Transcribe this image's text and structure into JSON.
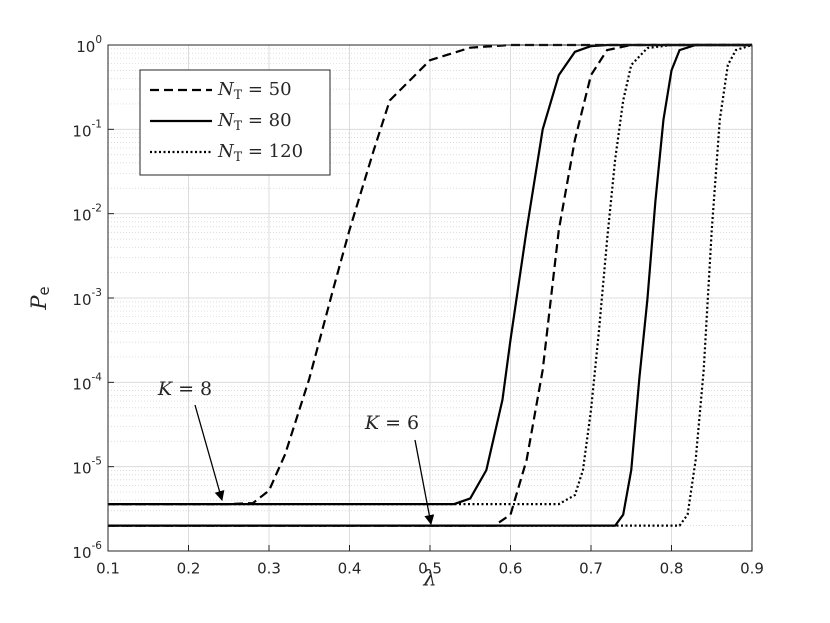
{
  "chart_data": {
    "type": "line",
    "log_y": true,
    "grid": true,
    "minor_grid": true,
    "x_label": "λ",
    "y_label": "P_e",
    "xlim": [
      0.1,
      0.9
    ],
    "xticks": [
      0.1,
      0.2,
      0.3,
      0.4,
      0.5,
      0.6,
      0.7,
      0.8,
      0.9
    ],
    "ylim": [
      1e-06,
      1
    ],
    "yticks": [
      {
        "value": 1e-06,
        "label": "10^-6"
      },
      {
        "value": 1e-05,
        "label": "10^-5"
      },
      {
        "value": 0.0001,
        "label": "10^-4"
      },
      {
        "value": 0.001,
        "label": "10^-3"
      },
      {
        "value": 0.01,
        "label": "10^-2"
      },
      {
        "value": 0.1,
        "label": "10^-1"
      },
      {
        "value": 1,
        "label": "10^0"
      }
    ],
    "legend": "upper left",
    "annotations": [
      "K = 8",
      "K = 6"
    ],
    "series": [
      {
        "name": "N_T = 50",
        "color": "#000000",
        "dash": "dashed",
        "curves": [
          {
            "x": [
              0.1,
              0.25,
              0.28,
              0.3,
              0.32,
              0.35,
              0.38,
              0.4,
              0.43,
              0.45,
              0.5,
              0.55,
              0.6,
              0.9
            ],
            "values": [
              3.6e-06,
              3.6e-06,
              3.7e-06,
              5.2e-06,
              1.4e-05,
              0.00011,
              0.0013,
              0.0064,
              0.056,
              0.22,
              0.66,
              0.93,
              1,
              1
            ]
          },
          {
            "x": [
              0.1,
              0.58,
              0.6,
              0.62,
              0.64,
              0.65,
              0.66,
              0.68,
              0.7,
              0.72,
              0.75,
              0.9
            ],
            "values": [
              2e-06,
              2e-06,
              2.7e-06,
              1.2e-05,
              0.00014,
              0.00095,
              0.0064,
              0.075,
              0.44,
              0.87,
              1,
              1
            ]
          }
        ]
      },
      {
        "name": "N_T = 80",
        "color": "#000000",
        "dash": "solid",
        "curves": [
          {
            "x": [
              0.1,
              0.53,
              0.55,
              0.57,
              0.59,
              0.6,
              0.62,
              0.64,
              0.66,
              0.68,
              0.7,
              0.72,
              0.9
            ],
            "values": [
              3.6e-06,
              3.6e-06,
              4.2e-06,
              9.1e-06,
              6.2e-05,
              0.00032,
              0.0064,
              0.1,
              0.44,
              0.83,
              0.97,
              1,
              1
            ]
          },
          {
            "x": [
              0.1,
              0.73,
              0.74,
              0.75,
              0.76,
              0.77,
              0.78,
              0.79,
              0.8,
              0.81,
              0.83,
              0.9
            ],
            "values": [
              2e-06,
              2e-06,
              2.7e-06,
              9.1e-06,
              0.00011,
              0.00095,
              0.014,
              0.13,
              0.5,
              0.87,
              1,
              1
            ]
          }
        ]
      },
      {
        "name": "N_T = 120",
        "color": "#000000",
        "dash": "dotted",
        "curves": [
          {
            "x": [
              0.1,
              0.66,
              0.68,
              0.69,
              0.7,
              0.71,
              0.72,
              0.73,
              0.74,
              0.75,
              0.77,
              0.8,
              0.9
            ],
            "values": [
              3.6e-06,
              3.6e-06,
              4.6e-06,
              9.1e-06,
              4.7e-05,
              0.00042,
              0.0049,
              0.044,
              0.22,
              0.58,
              0.92,
              1,
              1
            ]
          },
          {
            "x": [
              0.1,
              0.81,
              0.82,
              0.83,
              0.84,
              0.85,
              0.86,
              0.87,
              0.88,
              0.9
            ],
            "values": [
              2e-06,
              2e-06,
              2.7e-06,
              1.2e-05,
              0.00014,
              0.0064,
              0.13,
              0.58,
              0.87,
              1
            ]
          }
        ]
      }
    ]
  }
}
